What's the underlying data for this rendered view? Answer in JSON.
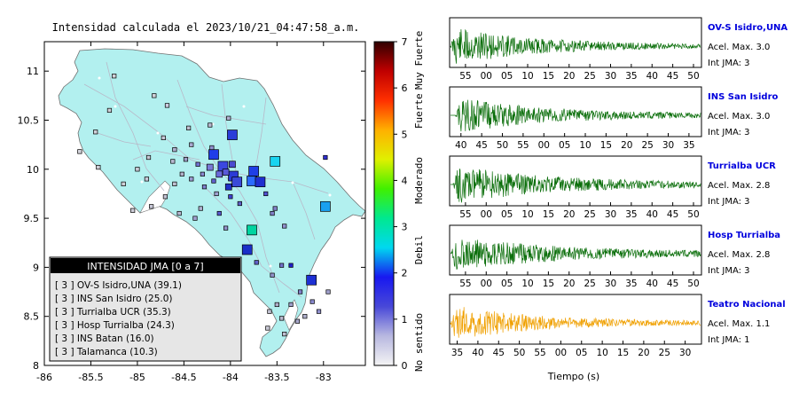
{
  "map": {
    "title": "Intensidad calculada el 2023/10/21_04:47:58_a.m.",
    "x_ticks": [
      "-86",
      "-85.5",
      "-85",
      "-84.5",
      "-84",
      "-83.5",
      "-83"
    ],
    "y_ticks": [
      "11",
      "10.5",
      "10",
      "9.5",
      "9",
      "8.5",
      "8"
    ],
    "land_color": "#b2f0ef",
    "stations": [
      {
        "lon": -83.98,
        "lat": 10.35,
        "size": "large",
        "color": "#2a3cd8"
      },
      {
        "lon": -83.75,
        "lat": 9.98,
        "size": "large",
        "color": "#1f3fe6"
      },
      {
        "lon": -83.77,
        "lat": 9.88,
        "size": "large",
        "color": "#2a6bff"
      },
      {
        "lon": -83.68,
        "lat": 9.87,
        "size": "large",
        "color": "#1e2fd0"
      },
      {
        "lon": -83.77,
        "lat": 9.38,
        "size": "large",
        "color": "#00d4a0"
      },
      {
        "lon": -83.82,
        "lat": 9.18,
        "size": "large",
        "color": "#1a2fc8"
      },
      {
        "lon": -83.52,
        "lat": 10.08,
        "size": "large",
        "color": "#18d4f0"
      },
      {
        "lon": -83.13,
        "lat": 8.87,
        "size": "large",
        "color": "#1e30d4"
      },
      {
        "lon": -82.98,
        "lat": 9.62,
        "size": "large",
        "color": "#1aa0f0"
      },
      {
        "lon": -84.18,
        "lat": 10.15,
        "size": "large",
        "color": "#1f3ee8"
      },
      {
        "lon": -84.08,
        "lat": 10.03,
        "size": "large",
        "color": "#3b47e0"
      },
      {
        "lon": -83.97,
        "lat": 9.93,
        "size": "large",
        "color": "#2c3bd6"
      },
      {
        "lon": -83.93,
        "lat": 9.87,
        "size": "large",
        "color": "#3a4ad8"
      },
      {
        "lon": -84.05,
        "lat": 9.97,
        "size": "medium",
        "color": "#5a5ad8"
      },
      {
        "lon": -84.02,
        "lat": 9.82,
        "size": "medium",
        "color": "#2030c8"
      },
      {
        "lon": -84.12,
        "lat": 9.95,
        "size": "medium",
        "color": "#6a6adb"
      },
      {
        "lon": -84.22,
        "lat": 10.02,
        "size": "medium",
        "color": "#7a7ad8"
      },
      {
        "lon": -83.98,
        "lat": 10.05,
        "size": "medium",
        "color": "#4a4ad0"
      },
      {
        "lon": -84.3,
        "lat": 9.95,
        "size": "small",
        "color": "#8a8ad0"
      },
      {
        "lon": -84.42,
        "lat": 9.9,
        "size": "small",
        "color": "#9a9ad0"
      },
      {
        "lon": -84.48,
        "lat": 10.1,
        "size": "small",
        "color": "#a0a0c8"
      },
      {
        "lon": -84.35,
        "lat": 10.05,
        "size": "small",
        "color": "#7070d0"
      },
      {
        "lon": -84.18,
        "lat": 9.88,
        "size": "small",
        "color": "#6060cc"
      },
      {
        "lon": -84.28,
        "lat": 9.82,
        "size": "small",
        "color": "#8080cc"
      },
      {
        "lon": -84.15,
        "lat": 9.75,
        "size": "small",
        "color": "#a0a0d0"
      },
      {
        "lon": -84.52,
        "lat": 9.95,
        "size": "small",
        "color": "#b0b0c8"
      },
      {
        "lon": -84.6,
        "lat": 9.85,
        "size": "small",
        "color": "#c0c0d0"
      },
      {
        "lon": -84.7,
        "lat": 9.72,
        "size": "small",
        "color": "#c4c4d4"
      },
      {
        "lon": -84.85,
        "lat": 9.62,
        "size": "small",
        "color": "#c8c8d8"
      },
      {
        "lon": -85.05,
        "lat": 9.58,
        "size": "small",
        "color": "#cdcdd8"
      },
      {
        "lon": -85.42,
        "lat": 10.02,
        "size": "small",
        "color": "#d0d0d8"
      },
      {
        "lon": -85.62,
        "lat": 10.18,
        "size": "small",
        "color": "#d4d4dc"
      },
      {
        "lon": -85.45,
        "lat": 10.38,
        "size": "small",
        "color": "#d0d0d8"
      },
      {
        "lon": -85.3,
        "lat": 10.6,
        "size": "small",
        "color": "#d0d0d8"
      },
      {
        "lon": -85.25,
        "lat": 10.95,
        "size": "small",
        "color": "#d0d0d8"
      },
      {
        "lon": -84.82,
        "lat": 10.75,
        "size": "small",
        "color": "#d0d0d8"
      },
      {
        "lon": -84.68,
        "lat": 10.65,
        "size": "small",
        "color": "#cccce0"
      },
      {
        "lon": -84.72,
        "lat": 10.32,
        "size": "small",
        "color": "#c8c8d8"
      },
      {
        "lon": -84.45,
        "lat": 10.42,
        "size": "small",
        "color": "#c0c0d0"
      },
      {
        "lon": -84.22,
        "lat": 10.45,
        "size": "small",
        "color": "#b8b8d0"
      },
      {
        "lon": -84.02,
        "lat": 10.52,
        "size": "small",
        "color": "#b0b0d0"
      },
      {
        "lon": -84.2,
        "lat": 10.22,
        "size": "small",
        "color": "#9090d0"
      },
      {
        "lon": -84.42,
        "lat": 10.25,
        "size": "small",
        "color": "#a8a8d0"
      },
      {
        "lon": -84.88,
        "lat": 10.12,
        "size": "small",
        "color": "#c8c8d4"
      },
      {
        "lon": -85.0,
        "lat": 10.0,
        "size": "small",
        "color": "#c8c8d4"
      },
      {
        "lon": -85.15,
        "lat": 9.85,
        "size": "small",
        "color": "#d0d0d8"
      },
      {
        "lon": -84.9,
        "lat": 9.9,
        "size": "small",
        "color": "#c8c8d8"
      },
      {
        "lon": -84.62,
        "lat": 10.08,
        "size": "small",
        "color": "#b8b8d0"
      },
      {
        "lon": -84.55,
        "lat": 9.55,
        "size": "small",
        "color": "#b8b8d0"
      },
      {
        "lon": -84.32,
        "lat": 9.6,
        "size": "small",
        "color": "#b0b0d0"
      },
      {
        "lon": -84.12,
        "lat": 9.55,
        "size": "small",
        "color": "#5a5ad0"
      },
      {
        "lon": -84.05,
        "lat": 9.4,
        "size": "small",
        "color": "#9090c8"
      },
      {
        "lon": -84.38,
        "lat": 9.5,
        "size": "small",
        "color": "#a0a0d0"
      },
      {
        "lon": -84.0,
        "lat": 9.72,
        "size": "small",
        "color": "#4040d0"
      },
      {
        "lon": -83.9,
        "lat": 9.65,
        "size": "small",
        "color": "#6060c8"
      },
      {
        "lon": -83.55,
        "lat": 9.55,
        "size": "small",
        "color": "#8080c8"
      },
      {
        "lon": -83.62,
        "lat": 9.75,
        "size": "small",
        "color": "#5050d0"
      },
      {
        "lon": -83.42,
        "lat": 9.42,
        "size": "small",
        "color": "#9090cc"
      },
      {
        "lon": -83.72,
        "lat": 9.05,
        "size": "small",
        "color": "#6060c8"
      },
      {
        "lon": -83.45,
        "lat": 9.02,
        "size": "small",
        "color": "#7070c8"
      },
      {
        "lon": -83.35,
        "lat": 9.02,
        "size": "small",
        "color": "#2020c8"
      },
      {
        "lon": -83.55,
        "lat": 8.92,
        "size": "small",
        "color": "#9090c8"
      },
      {
        "lon": -83.25,
        "lat": 8.75,
        "size": "small",
        "color": "#8080c8"
      },
      {
        "lon": -83.05,
        "lat": 8.55,
        "size": "small",
        "color": "#9090cc"
      },
      {
        "lon": -82.95,
        "lat": 8.75,
        "size": "small",
        "color": "#a0a0cc"
      },
      {
        "lon": -83.35,
        "lat": 8.62,
        "size": "small",
        "color": "#a0a0cc"
      },
      {
        "lon": -83.12,
        "lat": 8.65,
        "size": "small",
        "color": "#8888cc"
      },
      {
        "lon": -83.5,
        "lat": 8.62,
        "size": "small",
        "color": "#b0b0cc"
      },
      {
        "lon": -83.58,
        "lat": 8.55,
        "size": "small",
        "color": "#c0c0d0"
      },
      {
        "lon": -83.45,
        "lat": 8.48,
        "size": "small",
        "color": "#b8b8cc"
      },
      {
        "lon": -83.28,
        "lat": 8.45,
        "size": "small",
        "color": "#a8a8cc"
      },
      {
        "lon": -83.42,
        "lat": 8.32,
        "size": "small",
        "color": "#c0c0d0"
      },
      {
        "lon": -83.6,
        "lat": 8.38,
        "size": "small",
        "color": "#c8c8d4"
      },
      {
        "lon": -82.98,
        "lat": 10.12,
        "size": "small",
        "color": "#3030d0"
      },
      {
        "lon": -83.2,
        "lat": 8.5,
        "size": "small",
        "color": "#b0b0cc"
      },
      {
        "lon": -83.52,
        "lat": 9.6,
        "size": "small",
        "color": "#8080c8"
      },
      {
        "lon": -84.6,
        "lat": 10.2,
        "size": "small",
        "color": "#b0b0d0"
      }
    ]
  },
  "legend": {
    "header": "INTENSIDAD JMA [0 a 7]",
    "entries": [
      "[ 3 ]  OV-S Isidro,UNA (39.1)",
      "[ 3 ]  INS San Isidro (25.0)",
      "[ 3 ]  Turrialba UCR (35.3)",
      "[ 3 ]  Hosp Turrialba (24.3)",
      "[ 3 ]  INS Batan (16.0)",
      "[ 3 ]  Talamanca (10.3)"
    ]
  },
  "colorbar": {
    "ticks": [
      "0",
      "1",
      "2",
      "3",
      "4",
      "5",
      "6",
      "7"
    ],
    "labels": [
      {
        "text": "No sentido",
        "from": 0,
        "to": 1
      },
      {
        "text": "Debil",
        "from": 2,
        "to": 3
      },
      {
        "text": "Moderado",
        "from": 3.5,
        "to": 4.5
      },
      {
        "text": "Fuerte",
        "from": 5,
        "to": 6
      },
      {
        "text": "Muy Fuerte",
        "from": 6.2,
        "to": 7
      }
    ],
    "stops": [
      "#f4f4f4",
      "#b8b8e0",
      "#4848d8",
      "#1818f0",
      "#00d8f0",
      "#00e890",
      "#40f000",
      "#e0f000",
      "#ffb000",
      "#ff3000",
      "#c00000",
      "#300000"
    ]
  },
  "waveforms": {
    "xlabel": "Tiempo (s)",
    "panels": [
      {
        "station": "OV-S Isidro,UNA",
        "acel": "Acel. Max. 3.0",
        "jma": "Int JMA: 3",
        "ticks": [
          "55",
          "00",
          "05",
          "10",
          "15",
          "20",
          "25",
          "30",
          "35",
          "40",
          "45",
          "50"
        ],
        "first_tick_frac": 0.063,
        "color": "#0a6e0a",
        "amplitude": 1.0,
        "onset": 0.0,
        "decay": 3.2,
        "label_color": "#0000dd"
      },
      {
        "station": "INS San Isidro",
        "acel": "Acel. Max. 3.0",
        "jma": "Int JMA: 3",
        "ticks": [
          "40",
          "45",
          "50",
          "55",
          "00",
          "05",
          "10",
          "15",
          "20",
          "25",
          "30",
          "35"
        ],
        "first_tick_frac": 0.045,
        "color": "#0a6e0a",
        "amplitude": 0.9,
        "onset": 0.02,
        "decay": 2.8,
        "label_color": "#0000dd"
      },
      {
        "station": "Turrialba UCR",
        "acel": "Acel. Max. 2.8",
        "jma": "Int JMA: 3",
        "ticks": [
          "55",
          "00",
          "05",
          "10",
          "15",
          "20",
          "25",
          "30",
          "35",
          "40",
          "45",
          "50"
        ],
        "first_tick_frac": 0.063,
        "color": "#0a6e0a",
        "amplitude": 0.95,
        "onset": 0.01,
        "decay": 2.5,
        "label_color": "#0000dd"
      },
      {
        "station": "Hosp Turrialba",
        "acel": "Acel. Max. 2.8",
        "jma": "Int JMA: 3",
        "ticks": [
          "55",
          "00",
          "05",
          "10",
          "15",
          "20",
          "25",
          "30",
          "35",
          "40",
          "45",
          "50"
        ],
        "first_tick_frac": 0.063,
        "color": "#0a6e0a",
        "amplitude": 0.85,
        "onset": 0.0,
        "decay": 2.2,
        "label_color": "#0000dd"
      },
      {
        "station": "Teatro Nacional",
        "acel": "Acel. Max. 1.1",
        "jma": "Int JMA: 1",
        "ticks": [
          "35",
          "40",
          "45",
          "50",
          "55",
          "00",
          "05",
          "10",
          "15",
          "20",
          "25",
          "30"
        ],
        "first_tick_frac": 0.03,
        "color": "#f0a000",
        "amplitude": 0.9,
        "onset": 0.0,
        "decay": 3.0,
        "label_color": "#0000dd"
      }
    ]
  }
}
